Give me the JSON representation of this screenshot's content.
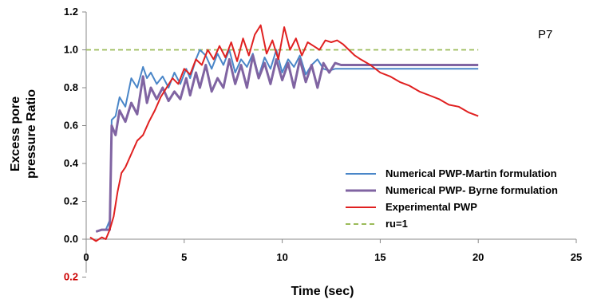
{
  "chart_data": {
    "type": "line",
    "panel_label": "P7",
    "xlabel": "Time (sec)",
    "ylabel": "Excess pore pressure Ratio",
    "ylabel_lines": [
      "Excess pore",
      "pressure Ratio"
    ],
    "xlim": [
      0,
      25
    ],
    "ylim": [
      0,
      1.2
    ],
    "x_ticks": [
      "0",
      "5",
      "10",
      "15",
      "20",
      "25"
    ],
    "y_ticks": [
      "0.0",
      "0.2",
      "0.4",
      "0.6",
      "0.8",
      "1.0",
      "1.2"
    ],
    "extra_tick": {
      "label": "0.2",
      "value": -0.2,
      "color": "#cc0000"
    },
    "grid": false,
    "legend_position": "bottom-right",
    "series": [
      {
        "name": "Numerical PWP-Martin formulation",
        "color": "#4a86c8",
        "dash": "none",
        "x": [
          0.5,
          0.8,
          1.0,
          1.2,
          1.3,
          1.5,
          1.7,
          2.0,
          2.3,
          2.6,
          2.9,
          3.1,
          3.3,
          3.6,
          3.9,
          4.2,
          4.5,
          4.8,
          5.1,
          5.3,
          5.6,
          5.8,
          6.1,
          6.4,
          6.7,
          7.0,
          7.3,
          7.6,
          7.9,
          8.2,
          8.5,
          8.8,
          9.1,
          9.4,
          9.7,
          10.0,
          10.3,
          10.6,
          10.9,
          11.2,
          11.5,
          11.8,
          12.1,
          12.4,
          12.7,
          13.0,
          14,
          15,
          16,
          17,
          18,
          19,
          20
        ],
        "y": [
          0.04,
          0.05,
          0.05,
          0.1,
          0.63,
          0.65,
          0.75,
          0.7,
          0.85,
          0.8,
          0.91,
          0.85,
          0.88,
          0.82,
          0.86,
          0.8,
          0.88,
          0.82,
          0.9,
          0.85,
          0.95,
          1.0,
          0.97,
          0.9,
          0.98,
          0.92,
          1.0,
          0.88,
          0.95,
          0.91,
          0.98,
          0.86,
          0.96,
          0.9,
          1.0,
          0.88,
          0.95,
          0.91,
          0.97,
          0.87,
          0.92,
          0.95,
          0.9,
          0.89,
          0.9,
          0.9,
          0.9,
          0.9,
          0.9,
          0.9,
          0.9,
          0.9,
          0.9
        ]
      },
      {
        "name": "Numerical PWP- Byrne formulation",
        "color": "#8064a2",
        "dash": "none",
        "x": [
          0.5,
          0.8,
          1.0,
          1.2,
          1.3,
          1.5,
          1.7,
          2.0,
          2.3,
          2.6,
          2.9,
          3.1,
          3.3,
          3.6,
          3.9,
          4.2,
          4.5,
          4.8,
          5.1,
          5.3,
          5.6,
          5.8,
          6.1,
          6.4,
          6.7,
          7.0,
          7.3,
          7.6,
          7.9,
          8.2,
          8.5,
          8.8,
          9.1,
          9.4,
          9.7,
          10.0,
          10.3,
          10.6,
          10.9,
          11.2,
          11.5,
          11.8,
          12.1,
          12.4,
          12.7,
          13.0,
          14,
          15,
          16,
          17,
          18,
          19,
          20
        ],
        "y": [
          0.04,
          0.05,
          0.05,
          0.05,
          0.6,
          0.55,
          0.68,
          0.62,
          0.72,
          0.66,
          0.86,
          0.72,
          0.8,
          0.74,
          0.8,
          0.73,
          0.78,
          0.74,
          0.85,
          0.76,
          0.88,
          0.8,
          0.92,
          0.78,
          0.85,
          0.8,
          0.95,
          0.82,
          0.92,
          0.8,
          0.97,
          0.85,
          0.93,
          0.82,
          0.95,
          0.84,
          0.93,
          0.8,
          0.95,
          0.83,
          0.92,
          0.8,
          0.93,
          0.88,
          0.93,
          0.92,
          0.92,
          0.92,
          0.92,
          0.92,
          0.92,
          0.92,
          0.92
        ]
      },
      {
        "name": "Experimental PWP",
        "color": "#e02020",
        "dash": "none",
        "x": [
          0.2,
          0.5,
          0.8,
          1.0,
          1.2,
          1.4,
          1.6,
          1.8,
          2.0,
          2.3,
          2.6,
          2.9,
          3.2,
          3.5,
          3.8,
          4.1,
          4.4,
          4.7,
          5.0,
          5.3,
          5.6,
          5.9,
          6.2,
          6.5,
          6.8,
          7.1,
          7.4,
          7.7,
          8.0,
          8.3,
          8.6,
          8.9,
          9.2,
          9.5,
          9.8,
          10.1,
          10.4,
          10.7,
          11.0,
          11.3,
          11.6,
          11.9,
          12.2,
          12.5,
          12.8,
          13.1,
          13.4,
          13.7,
          14.0,
          14.5,
          15.0,
          15.5,
          16.0,
          16.5,
          17.0,
          17.5,
          18.0,
          18.5,
          19.0,
          19.5,
          20.0
        ],
        "y": [
          0.01,
          -0.01,
          0.01,
          0.0,
          0.05,
          0.12,
          0.25,
          0.35,
          0.38,
          0.45,
          0.52,
          0.55,
          0.62,
          0.68,
          0.75,
          0.8,
          0.85,
          0.82,
          0.9,
          0.87,
          0.95,
          0.92,
          1.0,
          0.95,
          1.02,
          0.96,
          1.04,
          0.94,
          1.06,
          0.97,
          1.08,
          1.13,
          0.98,
          1.05,
          0.95,
          1.12,
          1.0,
          1.06,
          0.97,
          1.04,
          1.02,
          1.0,
          1.05,
          1.04,
          1.05,
          1.03,
          1.0,
          0.97,
          0.95,
          0.92,
          0.88,
          0.86,
          0.83,
          0.81,
          0.78,
          0.76,
          0.74,
          0.71,
          0.7,
          0.67,
          0.65
        ]
      },
      {
        "name": "ru=1",
        "color": "#9bbb59",
        "dash": "6,4",
        "x": [
          0,
          20
        ],
        "y": [
          1.0,
          1.0
        ]
      }
    ]
  }
}
